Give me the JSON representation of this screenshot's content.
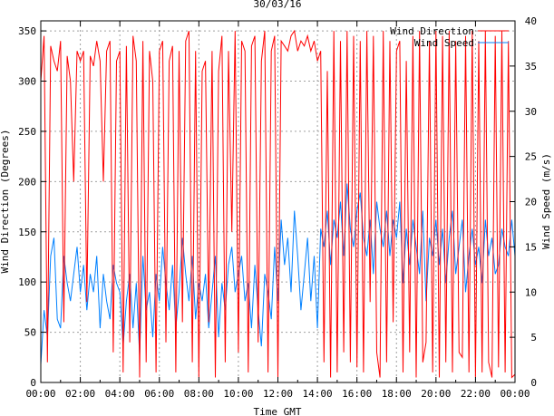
{
  "chart_data": {
    "type": "line",
    "title": "30/03/16",
    "xlabel": "Time GMT",
    "ylabel": "Wind Direction (Degrees)",
    "y2label": "Wind Speed (m/s)",
    "xlim": [
      0,
      24
    ],
    "ylim": [
      0,
      360
    ],
    "y2lim": [
      0,
      40
    ],
    "x_ticks": [
      "00:00",
      "02:00",
      "04:00",
      "06:00",
      "08:00",
      "10:00",
      "12:00",
      "14:00",
      "16:00",
      "18:00",
      "20:00",
      "22:00",
      "00:00"
    ],
    "y_ticks": [
      0,
      50,
      100,
      150,
      200,
      250,
      300,
      350
    ],
    "y2_ticks": [
      0,
      5,
      10,
      15,
      20,
      25,
      30,
      35,
      40
    ],
    "grid": true,
    "legend_position": "top-right",
    "x_step_minutes": 10,
    "series": [
      {
        "name": "Wind Direction",
        "axis": "left",
        "color": "#ff0000",
        "values": [
          300,
          345,
          20,
          335,
          320,
          310,
          340,
          60,
          325,
          300,
          200,
          330,
          320,
          330,
          80,
          325,
          315,
          340,
          320,
          200,
          330,
          340,
          30,
          320,
          330,
          10,
          335,
          40,
          345,
          320,
          5,
          340,
          20,
          330,
          300,
          10,
          330,
          340,
          40,
          320,
          335,
          10,
          330,
          60,
          340,
          350,
          20,
          330,
          5,
          310,
          320,
          60,
          330,
          5,
          310,
          345,
          20,
          330,
          150,
          350,
          30,
          340,
          330,
          10,
          335,
          345,
          40,
          320,
          350,
          10,
          330,
          345,
          5,
          340,
          335,
          330,
          345,
          350,
          330,
          340,
          335,
          345,
          330,
          340,
          320,
          330,
          20,
          310,
          5,
          350,
          10,
          340,
          30,
          350,
          20,
          345,
          15,
          340,
          10,
          350,
          80,
          345,
          30,
          5,
          350,
          20,
          340,
          60,
          330,
          340,
          10,
          320,
          30,
          345,
          5,
          350,
          20,
          40,
          340,
          10,
          350,
          5,
          345,
          20,
          350,
          10,
          340,
          30,
          25,
          345,
          10,
          350,
          5,
          340,
          10,
          350,
          20,
          5,
          345,
          15,
          350,
          10,
          340,
          5,
          8
        ]
      },
      {
        "name": "Wind Speed",
        "axis": "right",
        "color": "#0080ff",
        "values": [
          2,
          8,
          5,
          14,
          16,
          7,
          6,
          14,
          11,
          9,
          12,
          15,
          10,
          13,
          8,
          12,
          10,
          14,
          6,
          12,
          9,
          7,
          13,
          11,
          10,
          4,
          9,
          12,
          6,
          11,
          3,
          14,
          8,
          10,
          5,
          12,
          9,
          15,
          11,
          8,
          13,
          6,
          10,
          16,
          12,
          9,
          14,
          7,
          11,
          9,
          12,
          6,
          10,
          14,
          5,
          11,
          8,
          13,
          15,
          10,
          12,
          14,
          9,
          11,
          6,
          13,
          8,
          4,
          12,
          10,
          7,
          15,
          9,
          18,
          13,
          16,
          10,
          19,
          14,
          8,
          12,
          16,
          9,
          14,
          6,
          17,
          15,
          19,
          13,
          18,
          16,
          20,
          14,
          22,
          17,
          15,
          19,
          21,
          16,
          14,
          18,
          12,
          20,
          17,
          15,
          19,
          14,
          18,
          16,
          20,
          11,
          17,
          13,
          18,
          15,
          12,
          19,
          9,
          16,
          14,
          18,
          13,
          17,
          11,
          16,
          19,
          12,
          15,
          18,
          10,
          14,
          17,
          13,
          15,
          11,
          18,
          14,
          16,
          12,
          13,
          17,
          15,
          14,
          18,
          14
        ]
      }
    ]
  }
}
